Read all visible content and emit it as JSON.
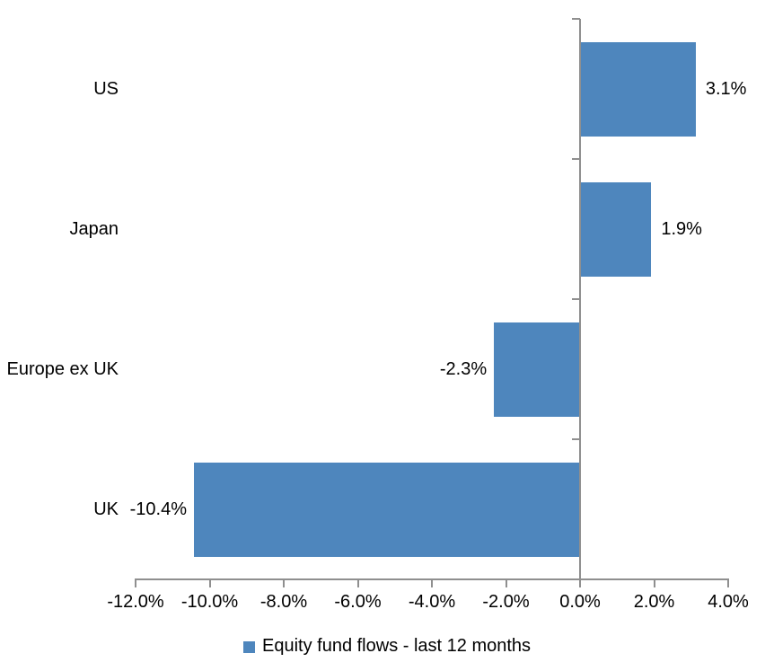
{
  "chart_data": {
    "type": "bar",
    "orientation": "horizontal",
    "categories": [
      "US",
      "Japan",
      "Europe ex UK",
      "UK"
    ],
    "values": [
      3.1,
      1.9,
      -2.3,
      -10.4
    ],
    "value_labels": [
      "3.1%",
      "1.9%",
      "-2.3%",
      "-10.4%"
    ],
    "series_name": "Equity fund flows - last 12 months",
    "xlabel": "",
    "ylabel": "",
    "xlim": [
      -12,
      4
    ],
    "x_tick_values": [
      -12,
      -10,
      -8,
      -6,
      -4,
      -2,
      0,
      2,
      4
    ],
    "x_tick_labels": [
      "-12.0%",
      "-10.0%",
      "-8.0%",
      "-6.0%",
      "-4.0%",
      "-2.0%",
      "0.0%",
      "2.0%",
      "4.0%"
    ],
    "grid": false,
    "legend_position": "bottom",
    "colors": {
      "bar": "#4E86BD",
      "axis": "#8F8F8F",
      "text": "#000000",
      "background": "#FFFFFF"
    }
  }
}
